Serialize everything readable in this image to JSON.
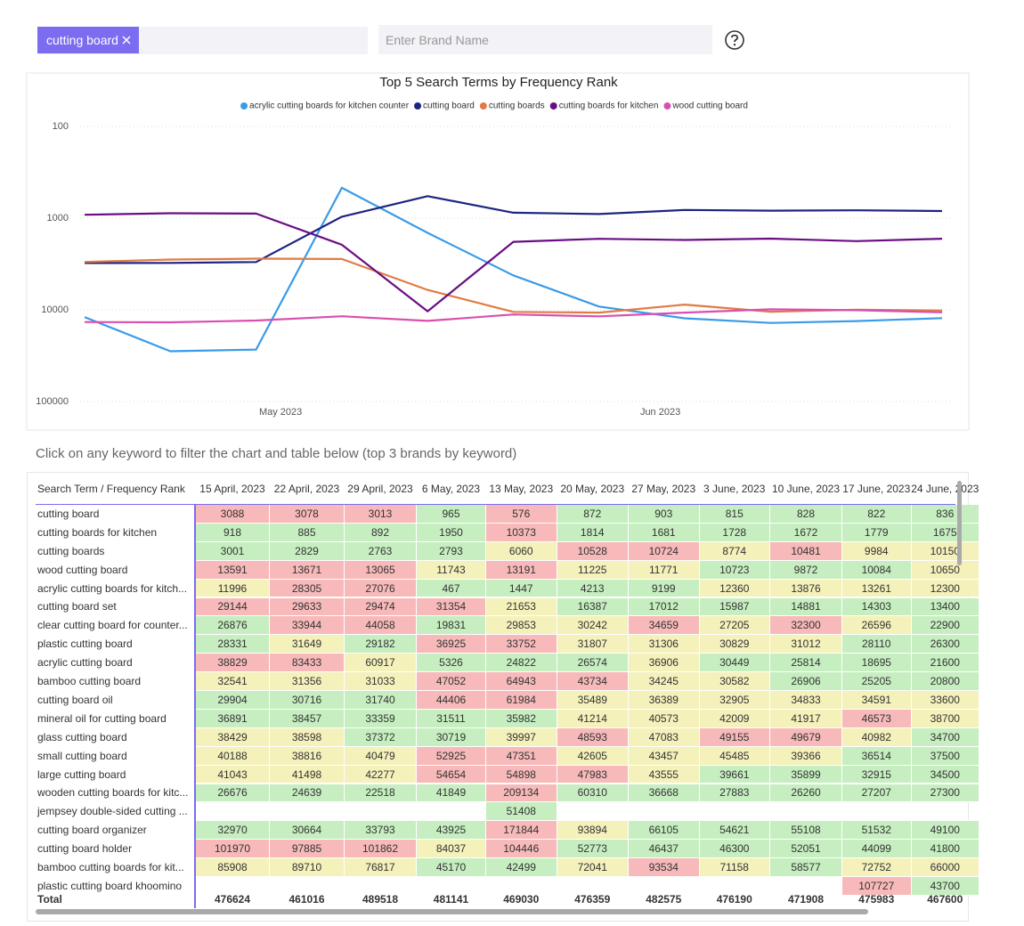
{
  "filter": {
    "chip": "cutting board",
    "brand_placeholder": "Enter Brand Name"
  },
  "chart_data": {
    "type": "line",
    "title": "Top 5 Search Terms by Frequency Rank",
    "x": [
      "2023-04-15",
      "2023-04-22",
      "2023-04-29",
      "2023-05-06",
      "2023-05-13",
      "2023-05-20",
      "2023-05-27",
      "2023-06-03",
      "2023-06-10",
      "2023-06-17",
      "2023-06-24"
    ],
    "xlim": [
      "2023-04-15",
      "2023-06-24"
    ],
    "xticks": [
      {
        "value": "2023-05-01",
        "label": "May 2023"
      },
      {
        "value": "2023-06-01",
        "label": "Jun 2023"
      }
    ],
    "ylim": [
      100,
      100000
    ],
    "yticks": [
      100,
      1000,
      10000,
      100000
    ],
    "y_log": true,
    "y_inverted": true,
    "grid": true,
    "legend": "top",
    "series": [
      {
        "name": "acrylic cutting boards for kitchen counter",
        "color": "#3a9be8",
        "values": [
          11996,
          28305,
          27076,
          467,
          1447,
          4213,
          9199,
          12360,
          13876,
          13261,
          12300
        ]
      },
      {
        "name": "cutting board",
        "color": "#1c2580",
        "values": [
          3088,
          3078,
          3013,
          965,
          576,
          872,
          903,
          815,
          828,
          822,
          836
        ]
      },
      {
        "name": "cutting boards",
        "color": "#e07b45",
        "values": [
          3001,
          2829,
          2763,
          2793,
          6060,
          10528,
          10724,
          8774,
          10481,
          9984,
          10150
        ]
      },
      {
        "name": "cutting boards for kitchen",
        "color": "#6a0d83",
        "values": [
          918,
          885,
          892,
          1950,
          10373,
          1814,
          1681,
          1728,
          1672,
          1779,
          1675
        ]
      },
      {
        "name": "wood cutting board",
        "color": "#d94fb0",
        "values": [
          13591,
          13671,
          13065,
          11743,
          13191,
          11225,
          11771,
          10723,
          9872,
          10084,
          10650
        ]
      }
    ]
  },
  "table": {
    "caption": "Click on any keyword to filter the chart and table below (top 3 brands by keyword)",
    "corner": "Search Term / Frequency Rank",
    "columns": [
      "15 April, 2023",
      "22 April, 2023",
      "29 April, 2023",
      "6 May, 2023",
      "13 May, 2023",
      "20 May, 2023",
      "27 May, 2023",
      "3 June, 2023",
      "10 June, 2023",
      "17 June, 2023",
      "24 June, 2023"
    ],
    "rows": [
      {
        "term": "cutting board",
        "values": [
          3088,
          3078,
          3013,
          965,
          576,
          872,
          903,
          815,
          828,
          822,
          836
        ],
        "colors": [
          "#f7b9b9",
          "#f7b9b9",
          "#f7b9b9",
          "#c6eec0",
          "#f7b9b9",
          "#c6eec0",
          "#c6eec0",
          "#c6eec0",
          "#c6eec0",
          "#c6eec0",
          "#c6eec0"
        ]
      },
      {
        "term": "cutting boards for kitchen",
        "values": [
          918,
          885,
          892,
          1950,
          10373,
          1814,
          1681,
          1728,
          1672,
          1779,
          1675
        ],
        "colors": [
          "#c6eec0",
          "#c6eec0",
          "#c6eec0",
          "#c6eec0",
          "#f7b9b9",
          "#c6eec0",
          "#c6eec0",
          "#c6eec0",
          "#c6eec0",
          "#c6eec0",
          "#c6eec0"
        ]
      },
      {
        "term": "cutting boards",
        "values": [
          3001,
          2829,
          2763,
          2793,
          6060,
          10528,
          10724,
          8774,
          10481,
          9984,
          10150
        ],
        "colors": [
          "#c6eec0",
          "#c6eec0",
          "#c6eec0",
          "#c6eec0",
          "#f4f1bb",
          "#f7b9b9",
          "#f7b9b9",
          "#f4f1bb",
          "#f7b9b9",
          "#f4f1bb",
          "#f4f1bb"
        ]
      },
      {
        "term": "wood cutting board",
        "values": [
          13591,
          13671,
          13065,
          11743,
          13191,
          11225,
          11771,
          10723,
          9872,
          10084,
          10650
        ],
        "colors": [
          "#f7b9b9",
          "#f7b9b9",
          "#f7b9b9",
          "#f4f1bb",
          "#f7b9b9",
          "#f4f1bb",
          "#f4f1bb",
          "#c6eec0",
          "#c6eec0",
          "#c6eec0",
          "#f4f1bb"
        ]
      },
      {
        "term": "acrylic cutting boards for kitch...",
        "values": [
          11996,
          28305,
          27076,
          467,
          1447,
          4213,
          9199,
          12360,
          13876,
          13261,
          12300
        ],
        "colors": [
          "#f4f1bb",
          "#f7b9b9",
          "#f7b9b9",
          "#c6eec0",
          "#c6eec0",
          "#c6eec0",
          "#c6eec0",
          "#f4f1bb",
          "#f4f1bb",
          "#f4f1bb",
          "#f4f1bb"
        ]
      },
      {
        "term": "cutting board set",
        "values": [
          29144,
          29633,
          29474,
          31354,
          21653,
          16387,
          17012,
          15987,
          14881,
          14303,
          13400
        ],
        "colors": [
          "#f7b9b9",
          "#f7b9b9",
          "#f7b9b9",
          "#f7b9b9",
          "#f4f1bb",
          "#c6eec0",
          "#c6eec0",
          "#c6eec0",
          "#c6eec0",
          "#c6eec0",
          "#c6eec0"
        ]
      },
      {
        "term": "clear cutting board for counter...",
        "values": [
          26876,
          33944,
          44058,
          19831,
          29853,
          30242,
          34659,
          27205,
          32300,
          26596,
          22900
        ],
        "colors": [
          "#c6eec0",
          "#f7b9b9",
          "#f7b9b9",
          "#c6eec0",
          "#f4f1bb",
          "#f4f1bb",
          "#f7b9b9",
          "#f4f1bb",
          "#f7b9b9",
          "#f4f1bb",
          "#c6eec0"
        ]
      },
      {
        "term": "plastic cutting board",
        "values": [
          28331,
          31649,
          29182,
          36925,
          33752,
          31807,
          31306,
          30829,
          31012,
          28110,
          26300
        ],
        "colors": [
          "#c6eec0",
          "#f4f1bb",
          "#c6eec0",
          "#f7b9b9",
          "#f7b9b9",
          "#f4f1bb",
          "#f4f1bb",
          "#f4f1bb",
          "#f4f1bb",
          "#c6eec0",
          "#c6eec0"
        ]
      },
      {
        "term": "acrylic cutting board",
        "values": [
          38829,
          83433,
          60917,
          5326,
          24822,
          26574,
          36906,
          30449,
          25814,
          18695,
          21600
        ],
        "colors": [
          "#f7b9b9",
          "#f7b9b9",
          "#f4f1bb",
          "#c6eec0",
          "#c6eec0",
          "#c6eec0",
          "#f4f1bb",
          "#c6eec0",
          "#c6eec0",
          "#c6eec0",
          "#c6eec0"
        ]
      },
      {
        "term": "bamboo cutting board",
        "values": [
          32541,
          31356,
          31033,
          47052,
          64943,
          43734,
          34245,
          30582,
          26906,
          25205,
          20800
        ],
        "colors": [
          "#f4f1bb",
          "#f4f1bb",
          "#f4f1bb",
          "#f7b9b9",
          "#f7b9b9",
          "#f7b9b9",
          "#f4f1bb",
          "#f4f1bb",
          "#c6eec0",
          "#c6eec0",
          "#c6eec0"
        ]
      },
      {
        "term": "cutting board oil",
        "values": [
          29904,
          30716,
          31740,
          44406,
          61984,
          35489,
          36389,
          32905,
          34833,
          34591,
          33600
        ],
        "colors": [
          "#c6eec0",
          "#c6eec0",
          "#c6eec0",
          "#f7b9b9",
          "#f7b9b9",
          "#f4f1bb",
          "#f4f1bb",
          "#f4f1bb",
          "#f4f1bb",
          "#f4f1bb",
          "#f4f1bb"
        ]
      },
      {
        "term": "mineral oil for cutting board",
        "values": [
          36891,
          38457,
          33359,
          31511,
          35982,
          41214,
          40573,
          42009,
          41917,
          46573,
          38700
        ],
        "colors": [
          "#c6eec0",
          "#c6eec0",
          "#c6eec0",
          "#c6eec0",
          "#c6eec0",
          "#f4f1bb",
          "#f4f1bb",
          "#f4f1bb",
          "#f4f1bb",
          "#f7b9b9",
          "#f4f1bb"
        ]
      },
      {
        "term": "glass cutting board",
        "values": [
          38429,
          38598,
          37372,
          30719,
          39997,
          48593,
          47083,
          49155,
          49679,
          40982,
          34700
        ],
        "colors": [
          "#f4f1bb",
          "#f4f1bb",
          "#c6eec0",
          "#c6eec0",
          "#f4f1bb",
          "#f7b9b9",
          "#f4f1bb",
          "#f7b9b9",
          "#f7b9b9",
          "#f4f1bb",
          "#c6eec0"
        ]
      },
      {
        "term": "small cutting board",
        "values": [
          40188,
          38816,
          40479,
          52925,
          47351,
          42605,
          43457,
          45485,
          39366,
          36514,
          37500
        ],
        "colors": [
          "#f4f1bb",
          "#f4f1bb",
          "#f4f1bb",
          "#f7b9b9",
          "#f7b9b9",
          "#f4f1bb",
          "#f4f1bb",
          "#f4f1bb",
          "#f4f1bb",
          "#c6eec0",
          "#c6eec0"
        ]
      },
      {
        "term": "large cutting board",
        "values": [
          41043,
          41498,
          42277,
          54654,
          54898,
          47983,
          43555,
          39661,
          35899,
          32915,
          34500
        ],
        "colors": [
          "#f4f1bb",
          "#f4f1bb",
          "#f4f1bb",
          "#f7b9b9",
          "#f7b9b9",
          "#f7b9b9",
          "#f4f1bb",
          "#c6eec0",
          "#c6eec0",
          "#c6eec0",
          "#c6eec0"
        ]
      },
      {
        "term": "wooden cutting boards for kitc...",
        "values": [
          26676,
          24639,
          22518,
          41849,
          209134,
          60310,
          36668,
          27883,
          26260,
          27207,
          27300
        ],
        "colors": [
          "#c6eec0",
          "#c6eec0",
          "#c6eec0",
          "#c6eec0",
          "#f7b9b9",
          "#c6eec0",
          "#c6eec0",
          "#c6eec0",
          "#c6eec0",
          "#c6eec0",
          "#c6eec0"
        ]
      },
      {
        "term": "jempsey double-sided cutting ...",
        "values": [
          null,
          null,
          null,
          null,
          51408,
          null,
          null,
          null,
          null,
          null,
          null
        ],
        "colors": [
          null,
          null,
          null,
          null,
          "#c6eec0",
          null,
          null,
          null,
          null,
          null,
          null
        ]
      },
      {
        "term": "cutting board organizer",
        "values": [
          32970,
          30664,
          33793,
          43925,
          171844,
          93894,
          66105,
          54621,
          55108,
          51532,
          49100
        ],
        "colors": [
          "#c6eec0",
          "#c6eec0",
          "#c6eec0",
          "#c6eec0",
          "#f7b9b9",
          "#f4f1bb",
          "#c6eec0",
          "#c6eec0",
          "#c6eec0",
          "#c6eec0",
          "#c6eec0"
        ]
      },
      {
        "term": "cutting board holder",
        "values": [
          101970,
          97885,
          101862,
          84037,
          104446,
          52773,
          46437,
          46300,
          52051,
          44099,
          41800
        ],
        "colors": [
          "#f7b9b9",
          "#f7b9b9",
          "#f7b9b9",
          "#f4f1bb",
          "#f7b9b9",
          "#c6eec0",
          "#c6eec0",
          "#c6eec0",
          "#c6eec0",
          "#c6eec0",
          "#c6eec0"
        ]
      },
      {
        "term": "bamboo cutting boards for kit...",
        "values": [
          85908,
          89710,
          76817,
          45170,
          42499,
          72041,
          93534,
          71158,
          58577,
          72752,
          66000
        ],
        "colors": [
          "#f4f1bb",
          "#f4f1bb",
          "#f4f1bb",
          "#c6eec0",
          "#c6eec0",
          "#f4f1bb",
          "#f7b9b9",
          "#f4f1bb",
          "#c6eec0",
          "#f4f1bb",
          "#f4f1bb"
        ]
      },
      {
        "term": "plastic cutting board khoomino",
        "values": [
          null,
          null,
          null,
          null,
          null,
          null,
          null,
          null,
          null,
          107727,
          43700
        ],
        "colors": [
          null,
          null,
          null,
          null,
          null,
          null,
          null,
          null,
          null,
          "#f7b9b9",
          "#c6eec0"
        ]
      }
    ],
    "total": {
      "label": "Total",
      "values": [
        476624,
        461016,
        489518,
        481141,
        469030,
        476359,
        482575,
        476190,
        471908,
        475983,
        467600
      ]
    }
  }
}
